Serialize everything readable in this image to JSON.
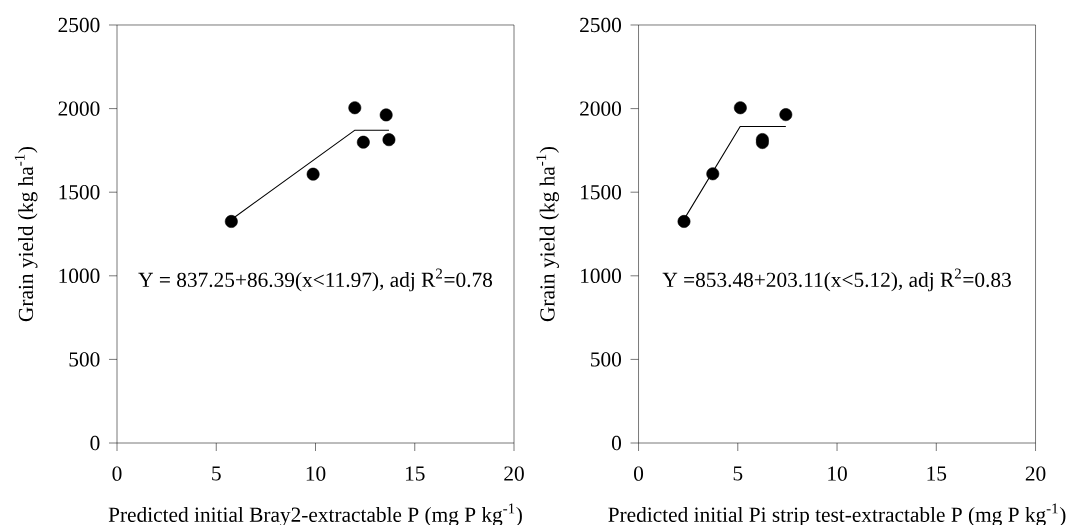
{
  "chart_data": [
    {
      "type": "scatter",
      "xlabel": "Predicted initial Bray2-extractable P (mg P kg$^{-1}$)",
      "ylabel": "Grain yield (kg ha$^{-1}$)",
      "annotations": [
        "Y = 837.25+86.39(x<11.97), adj R$^{2}$=0.78"
      ],
      "xlim": [
        0,
        20
      ],
      "ylim": [
        0,
        2500
      ],
      "xticks": [
        0,
        5,
        10,
        15,
        20
      ],
      "yticks": [
        0,
        500,
        1000,
        1500,
        2000,
        2500
      ],
      "grid": false,
      "series": [
        {
          "type": "scatter",
          "marker": "circle",
          "color": "#000000",
          "x": [
            5.76,
            9.88,
            11.98,
            12.41,
            13.56,
            13.7
          ],
          "values": [
            1325,
            1608,
            2005,
            1799,
            1962,
            1814
          ]
        },
        {
          "type": "line",
          "marker": "none",
          "color": "#000000",
          "x": [
            5.8,
            11.97,
            13.7
          ],
          "values": [
            1340,
            1870,
            1870
          ]
        }
      ]
    },
    {
      "type": "scatter",
      "xlabel": "Predicted initial Pi strip test-extractable P (mg P kg$^{-1}$)",
      "ylabel": "Grain yield (kg ha$^{-1}$)",
      "annotations": [
        "Y =853.48+203.11(x<5.12), adj R$^{2}$=0.83"
      ],
      "xlim": [
        0,
        20
      ],
      "ylim": [
        0,
        2500
      ],
      "xticks": [
        0,
        5,
        10,
        15,
        20
      ],
      "yticks": [
        0,
        500,
        1000,
        1500,
        2000,
        2500
      ],
      "grid": false,
      "series": [
        {
          "type": "scatter",
          "marker": "circle",
          "color": "#000000",
          "x": [
            2.29,
            3.74,
            5.13,
            6.24,
            6.24,
            7.42
          ],
          "values": [
            1325,
            1610,
            2005,
            1815,
            1797,
            1964
          ]
        },
        {
          "type": "line",
          "marker": "none",
          "color": "#000000",
          "x": [
            2.33,
            5.12,
            7.42
          ],
          "values": [
            1345,
            1893,
            1893
          ]
        }
      ]
    }
  ]
}
